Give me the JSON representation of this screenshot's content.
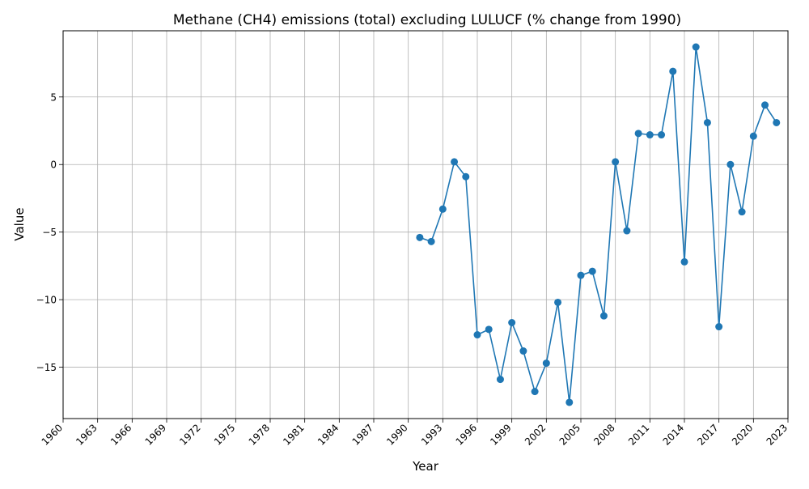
{
  "chart_data": {
    "type": "line",
    "title": "Methane (CH4) emissions (total) excluding LULUCF (% change from 1990)",
    "xlabel": "Year",
    "ylabel": "Value",
    "xlim": [
      1960,
      2023
    ],
    "ylim": [
      -18.8,
      9.9
    ],
    "x_ticks": [
      1960,
      1963,
      1966,
      1969,
      1972,
      1975,
      1978,
      1981,
      1984,
      1987,
      1990,
      1993,
      1996,
      1999,
      2002,
      2005,
      2008,
      2011,
      2014,
      2017,
      2020,
      2023
    ],
    "y_ticks": [
      -15,
      -10,
      -5,
      0,
      5
    ],
    "y_tick_labels": [
      "−15",
      "−10",
      "−5",
      "0",
      "5"
    ],
    "grid": true,
    "legend": "none",
    "color": "#1f77b4",
    "marker": "circle",
    "x": [
      1991,
      1992,
      1993,
      1994,
      1995,
      1996,
      1997,
      1998,
      1999,
      2000,
      2001,
      2002,
      2003,
      2004,
      2005,
      2006,
      2007,
      2008,
      2009,
      2010,
      2011,
      2012,
      2013,
      2014,
      2015,
      2016,
      2017,
      2018,
      2019,
      2020,
      2021,
      2022
    ],
    "values": [
      -5.4,
      -5.7,
      -3.3,
      0.2,
      -0.9,
      -12.6,
      -12.2,
      -15.9,
      -11.7,
      -13.8,
      -16.8,
      -14.7,
      -10.2,
      -17.6,
      -8.2,
      -7.9,
      -11.2,
      0.2,
      -4.9,
      2.3,
      2.2,
      2.2,
      6.9,
      -7.2,
      8.7,
      3.1,
      -12.0,
      0.0,
      -3.5,
      2.1,
      4.4,
      3.1
    ]
  }
}
